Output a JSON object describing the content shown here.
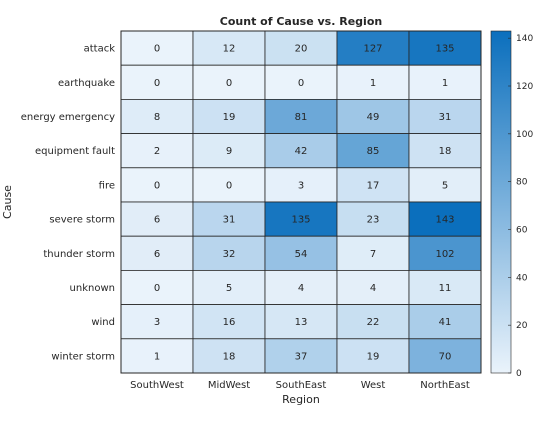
{
  "chart_data": {
    "type": "heatmap",
    "title": "Count of Cause vs. Region",
    "xlabel": "Region",
    "ylabel": "Cause",
    "x_categories": [
      "SouthWest",
      "MidWest",
      "SouthEast",
      "West",
      "NorthEast"
    ],
    "y_categories": [
      "attack",
      "earthquake",
      "energy emergency",
      "equipment fault",
      "fire",
      "severe storm",
      "thunder storm",
      "unknown",
      "wind",
      "winter storm"
    ],
    "values": [
      [
        0,
        12,
        20,
        127,
        135
      ],
      [
        0,
        0,
        0,
        1,
        1
      ],
      [
        8,
        19,
        81,
        49,
        31
      ],
      [
        2,
        9,
        42,
        85,
        18
      ],
      [
        0,
        0,
        3,
        17,
        5
      ],
      [
        6,
        31,
        135,
        23,
        143
      ],
      [
        6,
        32,
        54,
        7,
        102
      ],
      [
        0,
        5,
        4,
        4,
        11
      ],
      [
        3,
        16,
        13,
        22,
        41
      ],
      [
        1,
        18,
        37,
        19,
        70
      ]
    ],
    "colorbar": {
      "min": 0,
      "max": 143,
      "ticks": [
        0,
        20,
        40,
        60,
        80,
        100,
        120,
        140
      ],
      "colormap": [
        "#eaf3fb",
        "#0b6fbd"
      ]
    },
    "grid": true,
    "colors": {
      "low": "#eaf3fb",
      "high": "#0b6fbd",
      "cell_border": "#262626",
      "text": "#262626"
    }
  }
}
